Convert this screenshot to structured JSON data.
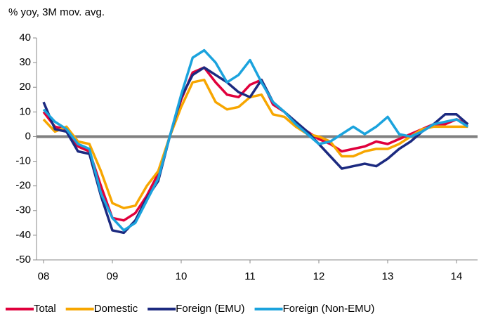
{
  "chart_data": {
    "type": "line",
    "y_label": "% yoy, 3M mov. avg.",
    "categories": [
      "08",
      null,
      null,
      null,
      null,
      null,
      "09",
      null,
      null,
      null,
      null,
      null,
      "10",
      null,
      null,
      null,
      null,
      null,
      "11",
      null,
      null,
      null,
      null,
      null,
      "12",
      null,
      null,
      null,
      null,
      null,
      "13",
      null,
      null,
      null,
      null,
      null,
      "14",
      null
    ],
    "series": [
      {
        "name": "Total",
        "color": "#e0003c",
        "values": [
          10,
          4,
          3,
          -4,
          -6,
          -20,
          -33,
          -34,
          -31,
          -24,
          -15,
          0,
          15,
          26,
          28,
          22,
          17,
          16,
          21,
          23,
          13,
          10,
          5,
          2,
          -1,
          -3,
          -6,
          -5,
          -4,
          -2,
          -3,
          -1,
          1,
          3,
          5,
          5,
          7,
          5
        ]
      },
      {
        "name": "Domestic",
        "color": "#f7a600",
        "values": [
          7,
          2,
          4,
          -2,
          -3,
          -14,
          -27,
          -29,
          -28,
          -20,
          -14,
          0,
          12,
          22,
          23,
          14,
          11,
          12,
          16,
          17,
          9,
          8,
          4,
          1,
          0,
          -2,
          -8,
          -8,
          -6,
          -5,
          -5,
          -3,
          0,
          3,
          4,
          4,
          4,
          4
        ]
      },
      {
        "name": "Foreign (EMU)",
        "color": "#1c2a80",
        "values": [
          14,
          3,
          2,
          -6,
          -7,
          -24,
          -38,
          -39,
          -34,
          -25,
          -18,
          0,
          16,
          25,
          28,
          25,
          22,
          18,
          16,
          23,
          14,
          10,
          6,
          2,
          -3,
          -8,
          -13,
          -12,
          -11,
          -12,
          -9,
          -5,
          -2,
          2,
          5,
          9,
          9,
          5
        ]
      },
      {
        "name": "Foreign (Non-EMU)",
        "color": "#1ba3dd",
        "values": [
          11,
          6,
          3,
          -3,
          -5,
          -23,
          -33,
          -38,
          -35,
          -26,
          -17,
          0,
          17,
          32,
          35,
          30,
          22,
          25,
          31,
          22,
          14,
          10,
          5,
          1,
          -3,
          -2,
          1,
          4,
          1,
          4,
          8,
          1,
          0,
          2,
          5,
          6,
          7,
          4
        ]
      }
    ],
    "ylim": [
      -50,
      40
    ],
    "yticks": [
      -50,
      -40,
      -30,
      -20,
      -10,
      0,
      10,
      20,
      30,
      40
    ],
    "grid": false,
    "legend": "bottom"
  }
}
